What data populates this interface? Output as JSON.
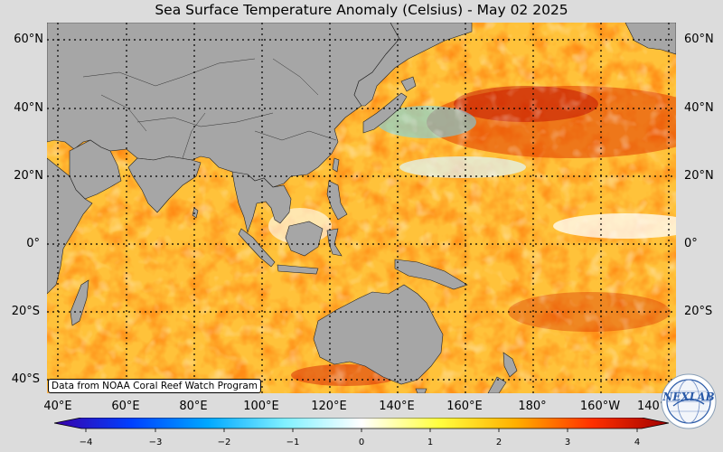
{
  "title": "Sea Surface Temperature Anomaly (Celsius) - May 02 2025",
  "latitude_labels": [
    "60°N",
    "40°N",
    "20°N",
    "0°",
    "20°S",
    "40°S"
  ],
  "longitude_labels": [
    "40°E",
    "60°E",
    "80°E",
    "100°E",
    "120°E",
    "140°E",
    "160°E",
    "180°",
    "160°W",
    "140°W"
  ],
  "credit": "Data from NOAA Coral Reef Watch Program",
  "colorbar": {
    "ticks": [
      "−4",
      "−3",
      "−2",
      "−1",
      "0",
      "1",
      "2",
      "3",
      "4"
    ],
    "range": [
      -4,
      4
    ],
    "colors": [
      "#3a00a8",
      "#0040ff",
      "#00a8ff",
      "#80f0ff",
      "#ffffff",
      "#ffff40",
      "#ffb000",
      "#ff3000",
      "#a00000"
    ]
  },
  "logo": {
    "text": "NEXLAB",
    "icon": "nexlab-globe-logo"
  },
  "map": {
    "land_color": "#a6a6a6",
    "gridline_style": "dotted",
    "projection": "equirectangular",
    "lon_range": [
      "40°E",
      "140°W"
    ],
    "lat_range": [
      "40°S",
      "65°N"
    ]
  }
}
